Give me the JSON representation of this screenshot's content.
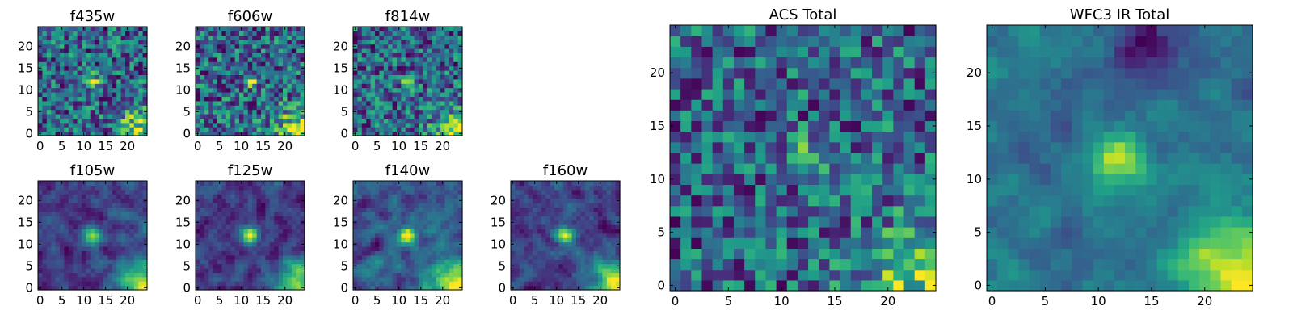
{
  "chart_data": [
    {
      "type": "heatmap",
      "title": "f435w",
      "xticks": [
        0,
        5,
        10,
        15,
        20
      ],
      "yticks": [
        0,
        5,
        10,
        15,
        20
      ],
      "xlim": [
        -0.5,
        24.5
      ],
      "ylim": [
        -0.5,
        24.5
      ],
      "colormap": "viridis",
      "source_pos": [
        12,
        12
      ],
      "grid": false
    },
    {
      "type": "heatmap",
      "title": "f606w",
      "xticks": [
        0,
        5,
        10,
        15,
        20
      ],
      "yticks": [
        0,
        5,
        10,
        15,
        20
      ],
      "xlim": [
        -0.5,
        24.5
      ],
      "ylim": [
        -0.5,
        24.5
      ],
      "colormap": "viridis",
      "source_pos": [
        12,
        12
      ],
      "grid": false
    },
    {
      "type": "heatmap",
      "title": "f814w",
      "xticks": [
        0,
        5,
        10,
        15,
        20
      ],
      "yticks": [
        0,
        5,
        10,
        15,
        20
      ],
      "xlim": [
        -0.5,
        24.5
      ],
      "ylim": [
        -0.5,
        24.5
      ],
      "colormap": "viridis",
      "source_pos": [
        12,
        12
      ],
      "grid": false
    },
    {
      "type": "heatmap",
      "title": "f105w",
      "xticks": [
        0,
        5,
        10,
        15,
        20
      ],
      "yticks": [
        0,
        5,
        10,
        15,
        20
      ],
      "xlim": [
        -0.5,
        24.5
      ],
      "ylim": [
        -0.5,
        24.5
      ],
      "colormap": "viridis",
      "source_pos": [
        12,
        12
      ],
      "grid": false
    },
    {
      "type": "heatmap",
      "title": "f125w",
      "xticks": [
        0,
        5,
        10,
        15,
        20
      ],
      "yticks": [
        0,
        5,
        10,
        15,
        20
      ],
      "xlim": [
        -0.5,
        24.5
      ],
      "ylim": [
        -0.5,
        24.5
      ],
      "colormap": "viridis",
      "source_pos": [
        12,
        12
      ],
      "grid": false
    },
    {
      "type": "heatmap",
      "title": "f140w",
      "xticks": [
        0,
        5,
        10,
        15,
        20
      ],
      "yticks": [
        0,
        5,
        10,
        15,
        20
      ],
      "xlim": [
        -0.5,
        24.5
      ],
      "ylim": [
        -0.5,
        24.5
      ],
      "colormap": "viridis",
      "source_pos": [
        12,
        12
      ],
      "grid": false
    },
    {
      "type": "heatmap",
      "title": "f160w",
      "xticks": [
        0,
        5,
        10,
        15,
        20
      ],
      "yticks": [
        0,
        5,
        10,
        15,
        20
      ],
      "xlim": [
        -0.5,
        24.5
      ],
      "ylim": [
        -0.5,
        24.5
      ],
      "colormap": "viridis",
      "source_pos": [
        12,
        12
      ],
      "grid": false
    },
    {
      "type": "heatmap",
      "title": "ACS Total",
      "xticks": [
        0,
        5,
        10,
        15,
        20
      ],
      "yticks": [
        0,
        5,
        10,
        15,
        20
      ],
      "xlim": [
        -0.5,
        24.5
      ],
      "ylim": [
        -0.5,
        24.5
      ],
      "colormap": "viridis",
      "source_pos": [
        12,
        12
      ],
      "grid": false
    },
    {
      "type": "heatmap",
      "title": "WFC3 IR Total",
      "xticks": [
        0,
        5,
        10,
        15,
        20
      ],
      "yticks": [
        0,
        5,
        10,
        15,
        20
      ],
      "xlim": [
        -0.5,
        24.5
      ],
      "ylim": [
        -0.5,
        24.5
      ],
      "colormap": "viridis",
      "source_pos": [
        12,
        12
      ],
      "grid": false
    }
  ]
}
